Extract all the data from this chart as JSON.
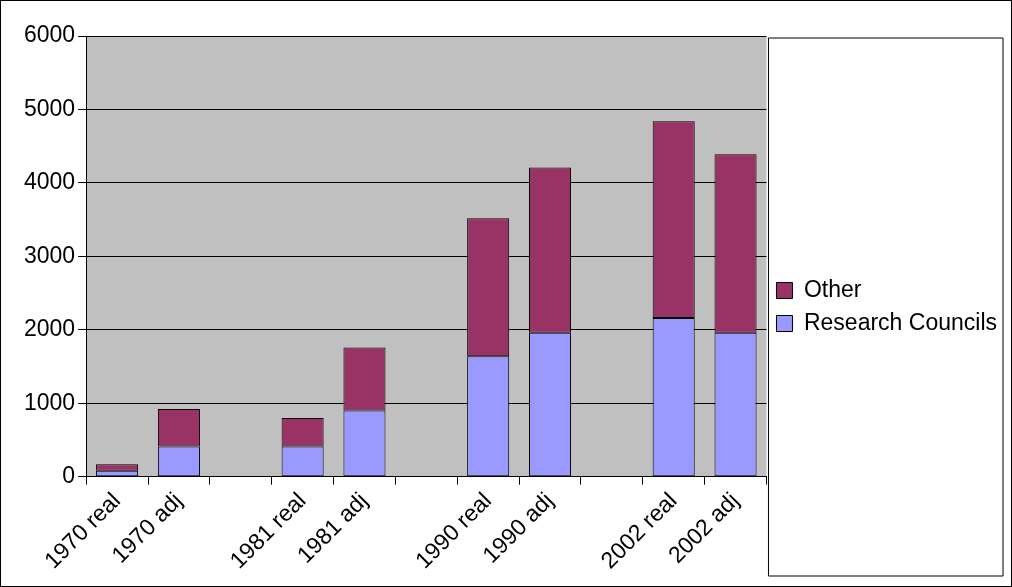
{
  "chart_data": {
    "type": "bar",
    "stacked": true,
    "categories": [
      "1970 real",
      "1970 adj",
      null,
      "1981 real",
      "1981 adj",
      null,
      "1990 real",
      "1990 adj",
      null,
      "2002 real",
      "2002 adj"
    ],
    "series": [
      {
        "name": "Research Councils",
        "color": "#9999ff",
        "values": [
          80,
          410,
          null,
          410,
          900,
          null,
          1640,
          1960,
          null,
          2160,
          1960
        ]
      },
      {
        "name": "Other",
        "color": "#993366",
        "values": [
          90,
          510,
          null,
          390,
          860,
          null,
          1880,
          2250,
          null,
          2680,
          2430
        ]
      }
    ],
    "ylim": [
      0,
      6000
    ],
    "yticks": [
      0,
      1000,
      2000,
      3000,
      4000,
      5000,
      6000
    ],
    "grid": "y",
    "legend": "right"
  }
}
